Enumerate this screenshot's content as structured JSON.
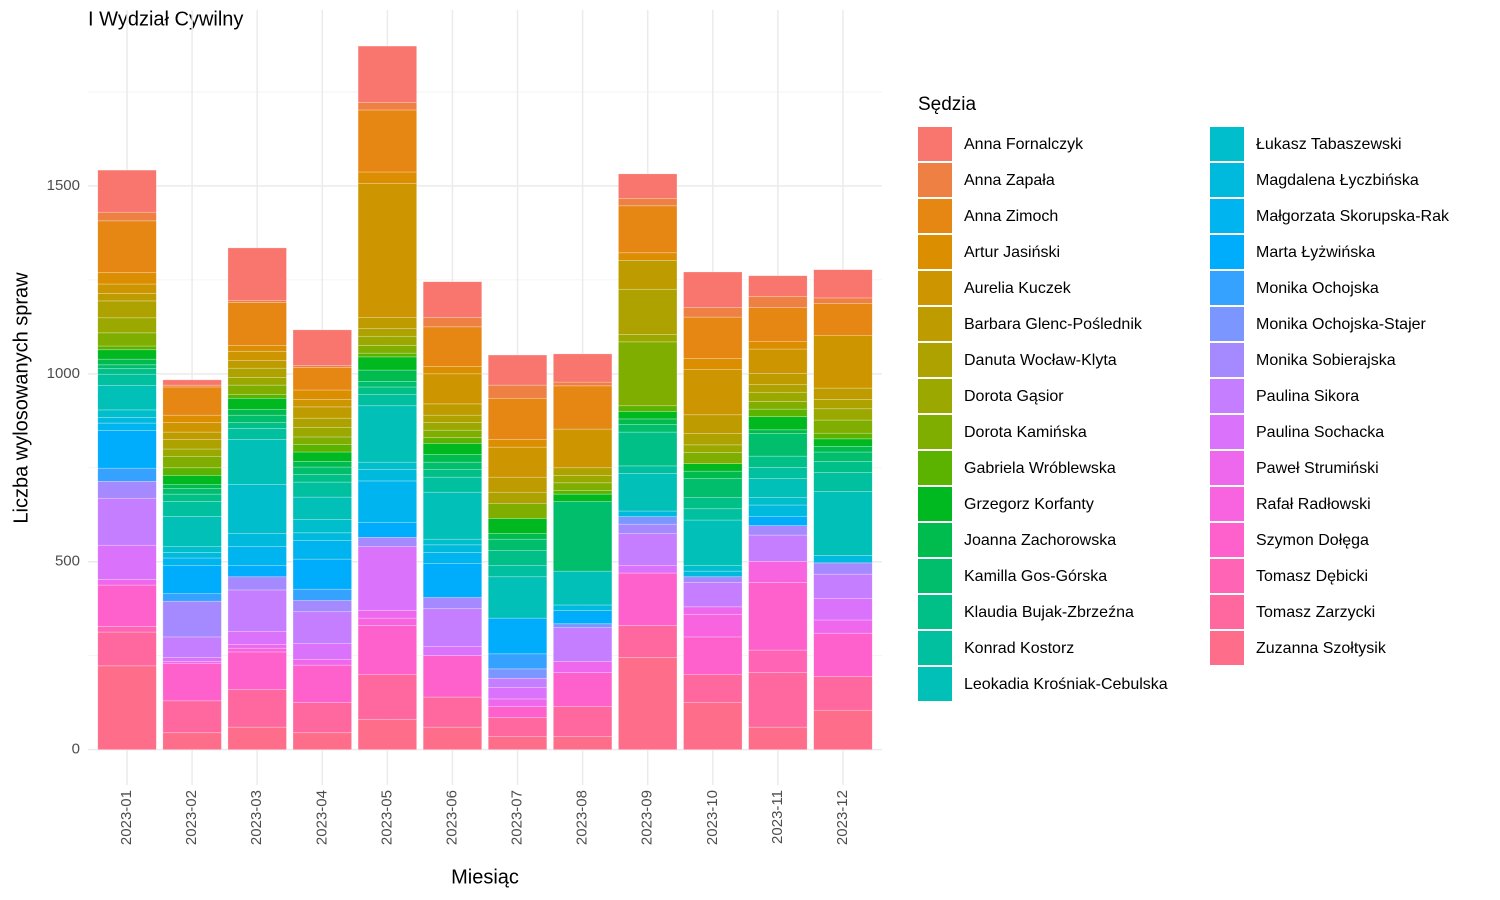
{
  "chart_data": {
    "type": "stacked_bar",
    "title": "I Wydział Cywilny",
    "x_label": "Miesiąc",
    "y_label": "Liczba wylosowanych spraw",
    "legend_title": "Sędzia",
    "legend_position": "right",
    "grid": true,
    "categories": [
      "2023-01",
      "2023-02",
      "2023-03",
      "2023-04",
      "2023-05",
      "2023-06",
      "2023-07",
      "2023-08",
      "2023-09",
      "2023-10",
      "2023-11",
      "2023-12"
    ],
    "ylim": [
      -94,
      1968
    ],
    "yticks": [
      0,
      500,
      1000,
      1500
    ],
    "yminor": [
      250,
      750,
      1250,
      1750
    ],
    "series": [
      {
        "name": "Anna Fornalczyk",
        "color": "#F8766D",
        "values": [
          112,
          14,
          140,
          95,
          150,
          95,
          80,
          75,
          65,
          95,
          55,
          75
        ]
      },
      {
        "name": "Anna Zapała",
        "color": "#EE8044",
        "values": [
          23,
          5,
          5,
          5,
          20,
          25,
          35,
          10,
          20,
          25,
          30,
          15
        ]
      },
      {
        "name": "Anna Zimoch",
        "color": "#E68613",
        "values": [
          138,
          75,
          115,
          60,
          165,
          105,
          110,
          115,
          125,
          110,
          90,
          85
        ]
      },
      {
        "name": "Artur Jasiński",
        "color": "#DB8E00",
        "values": [
          30,
          20,
          15,
          25,
          30,
          20,
          20,
          0,
          20,
          30,
          20,
          0
        ]
      },
      {
        "name": "Aurelia Kuczek",
        "color": "#CD9600",
        "values": [
          25,
          25,
          25,
          20,
          357,
          80,
          80,
          103,
          0,
          120,
          65,
          140
        ]
      },
      {
        "name": "Barbara Glenc-Poślednik",
        "color": "#BE9C00",
        "values": [
          20,
          20,
          20,
          30,
          30,
          30,
          40,
          0,
          77,
          50,
          30,
          30
        ]
      },
      {
        "name": "Danuta Wocław-Klyta",
        "color": "#AEA200",
        "values": [
          45,
          25,
          25,
          25,
          20,
          20,
          30,
          20,
          120,
          30,
          20,
          25
        ]
      },
      {
        "name": "Dorota Gąsior",
        "color": "#9AA800",
        "values": [
          40,
          20,
          20,
          25,
          25,
          20,
          0,
          20,
          20,
          20,
          25,
          30
        ]
      },
      {
        "name": "Dorota Kamińska",
        "color": "#7FAE00",
        "values": [
          35,
          30,
          25,
          20,
          20,
          20,
          40,
          20,
          170,
          30,
          20,
          35
        ]
      },
      {
        "name": "Gabriela Wróblewska",
        "color": "#5BB300",
        "values": [
          10,
          20,
          10,
          20,
          10,
          15,
          0,
          10,
          15,
          0,
          20,
          15
        ]
      },
      {
        "name": "Grzegorz Korfanty",
        "color": "#00B81F",
        "values": [
          25,
          25,
          30,
          25,
          35,
          30,
          40,
          20,
          20,
          20,
          35,
          20
        ]
      },
      {
        "name": "Joanna Zachorowska",
        "color": "#00BB4E",
        "values": [
          15,
          10,
          15,
          15,
          30,
          20,
          15,
          0,
          15,
          20,
          10,
          15
        ]
      },
      {
        "name": "Kamilla Gos-Górska",
        "color": "#00BE6C",
        "values": [
          10,
          15,
          20,
          20,
          15,
          20,
          30,
          185,
          20,
          50,
          60,
          25
        ]
      },
      {
        "name": "Klaudia Bujak-Zbrzeźna",
        "color": "#00C087",
        "values": [
          15,
          20,
          15,
          20,
          20,
          20,
          40,
          0,
          90,
          30,
          30,
          30
        ]
      },
      {
        "name": "Konrad Kostorz",
        "color": "#00C0A0",
        "values": [
          30,
          40,
          30,
          40,
          30,
          40,
          30,
          0,
          20,
          30,
          30,
          50
        ]
      },
      {
        "name": "Leokadia Krośniak-Cebulska",
        "color": "#00C0B7",
        "values": [
          65,
          80,
          120,
          60,
          150,
          125,
          110,
          90,
          100,
          121,
          50,
          170
        ]
      },
      {
        "name": "Łukasz Tabaszewski",
        "color": "#00BECC",
        "values": [
          20,
          15,
          130,
          35,
          20,
          15,
          0,
          0,
          0,
          15,
          20,
          0
        ]
      },
      {
        "name": "Magdalena Łyczbińska",
        "color": "#00BADE",
        "values": [
          15,
          15,
          35,
          20,
          30,
          20,
          0,
          15,
          15,
          15,
          30,
          20
        ]
      },
      {
        "name": "Małgorzata Skorupska-Rak",
        "color": "#00B4EF",
        "values": [
          20,
          20,
          50,
          50,
          110,
          30,
          0,
          0,
          0,
          0,
          0,
          0
        ]
      },
      {
        "name": "Marta Łyżwińska",
        "color": "#00ACFC",
        "values": [
          100,
          75,
          30,
          80,
          40,
          90,
          95,
          35,
          0,
          0,
          25,
          0
        ]
      },
      {
        "name": "Monika Ochojska",
        "color": "#35A2FF",
        "values": [
          35,
          20,
          0,
          30,
          0,
          0,
          40,
          0,
          0,
          0,
          0,
          0
        ]
      },
      {
        "name": "Monika Ochojska-Stajer",
        "color": "#7C96FF",
        "values": [
          0,
          0,
          0,
          0,
          0,
          0,
          25,
          10,
          20,
          0,
          0,
          0
        ]
      },
      {
        "name": "Monika Sobierajska",
        "color": "#A58AFF",
        "values": [
          45,
          95,
          35,
          30,
          25,
          30,
          0,
          0,
          25,
          15,
          25,
          30
        ]
      },
      {
        "name": "Paulina Sikora",
        "color": "#C47EFF",
        "values": [
          125,
          55,
          110,
          85,
          0,
          100,
          25,
          90,
          85,
          65,
          70,
          65
        ]
      },
      {
        "name": "Paulina Sochacka",
        "color": "#DB72FB",
        "values": [
          91,
          10,
          35,
          42,
          170,
          25,
          30,
          0,
          20,
          0,
          0,
          57
        ]
      },
      {
        "name": "Paweł Strumiński",
        "color": "#ED68ED",
        "values": [
          15,
          5,
          10,
          15,
          20,
          0,
          20,
          30,
          0,
          20,
          0,
          35
        ]
      },
      {
        "name": "Rafał Radłowski",
        "color": "#F863DF",
        "values": [
          0,
          0,
          10,
          0,
          20,
          0,
          0,
          0,
          0,
          60,
          56,
          0
        ]
      },
      {
        "name": "Szymon Dołęga",
        "color": "#FF61CC",
        "values": [
          110,
          100,
          100,
          100,
          130,
          110,
          30,
          90,
          140,
          100,
          180,
          115
        ]
      },
      {
        "name": "Tomasz Dębicki",
        "color": "#FF64B5",
        "values": [
          15,
          0,
          0,
          0,
          0,
          0,
          0,
          0,
          0,
          0,
          60,
          0
        ]
      },
      {
        "name": "Tomasz Zarzycki",
        "color": "#FF689E",
        "values": [
          90,
          85,
          100,
          80,
          120,
          80,
          50,
          80,
          85,
          75,
          145,
          90
        ]
      },
      {
        "name": "Zuzanna Szołtysik",
        "color": "#FE6E8A",
        "values": [
          223,
          45,
          60,
          45,
          80,
          60,
          35,
          35,
          245,
          125,
          60,
          105
        ]
      }
    ]
  }
}
